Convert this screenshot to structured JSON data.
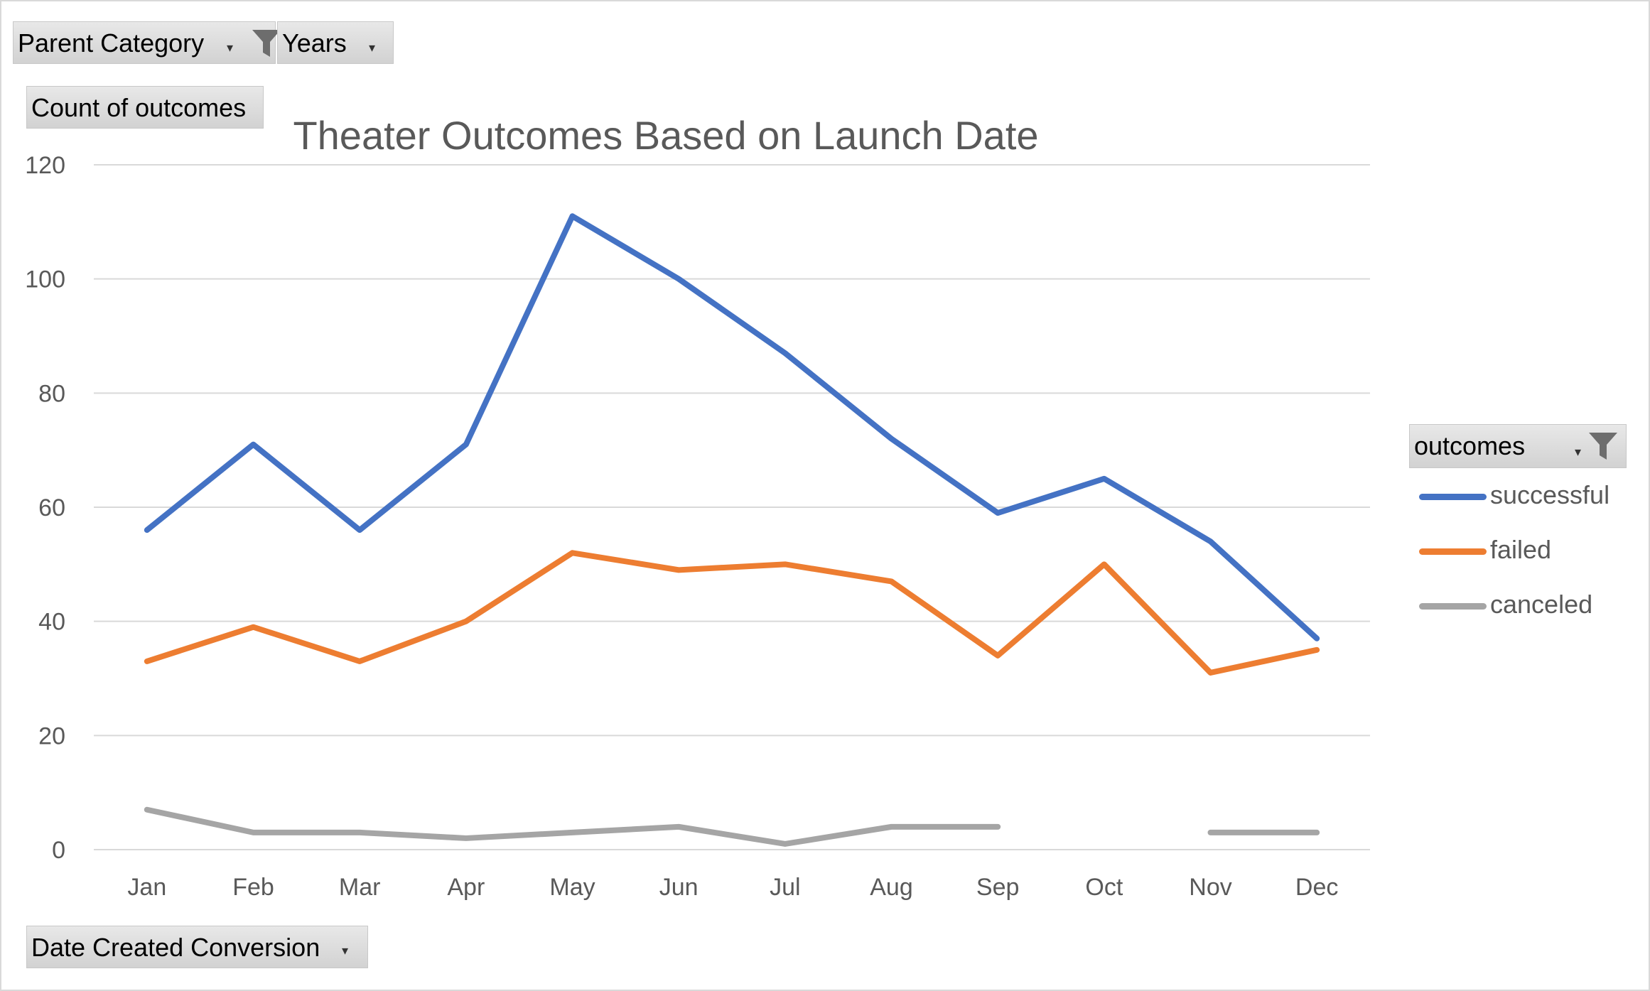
{
  "filters": {
    "parent_category": "Parent Category",
    "years": "Years",
    "values_field": "Count of outcomes",
    "axis_field": "Date Created Conversion",
    "legend_field": "outcomes"
  },
  "chart_data": {
    "type": "line",
    "title": "Theater Outcomes Based on Launch Date",
    "categories": [
      "Jan",
      "Feb",
      "Mar",
      "Apr",
      "May",
      "Jun",
      "Jul",
      "Aug",
      "Sep",
      "Oct",
      "Nov",
      "Dec"
    ],
    "ylim": [
      0,
      120
    ],
    "yticks": [
      0,
      20,
      40,
      60,
      80,
      100,
      120
    ],
    "grid": true,
    "legend": "right",
    "series": [
      {
        "name": "successful",
        "color": "#4472c4",
        "values": [
          56,
          71,
          56,
          71,
          111,
          100,
          87,
          72,
          59,
          65,
          54,
          37
        ]
      },
      {
        "name": "failed",
        "color": "#ed7d31",
        "values": [
          33,
          39,
          33,
          40,
          52,
          49,
          50,
          47,
          34,
          50,
          31,
          35
        ]
      },
      {
        "name": "canceled",
        "color": "#a5a5a5",
        "values": [
          7,
          3,
          3,
          2,
          3,
          4,
          1,
          4,
          4,
          null,
          3,
          3
        ]
      }
    ]
  }
}
